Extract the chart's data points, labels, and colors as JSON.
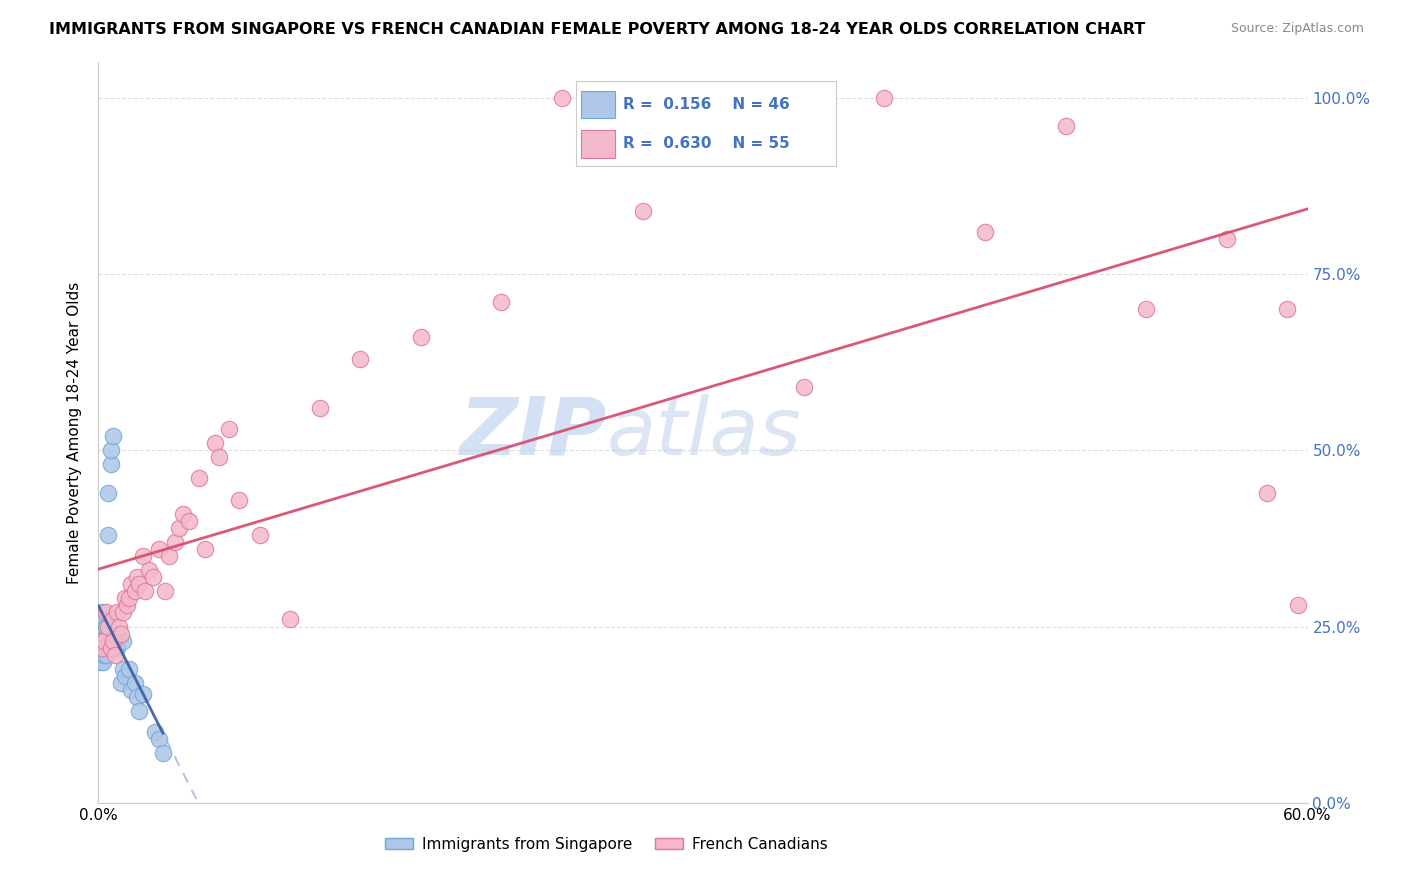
{
  "title": "IMMIGRANTS FROM SINGAPORE VS FRENCH CANADIAN FEMALE POVERTY AMONG 18-24 YEAR OLDS CORRELATION CHART",
  "source": "Source: ZipAtlas.com",
  "ylabel": "Female Poverty Among 18-24 Year Olds",
  "y_ticks": [
    0.0,
    0.25,
    0.5,
    0.75,
    1.0
  ],
  "y_tick_labels_right": [
    "0.0%",
    "25.0%",
    "50.0%",
    "75.0%",
    "100.0%"
  ],
  "xlim": [
    0.0,
    0.6
  ],
  "ylim": [
    0.0,
    1.05
  ],
  "R_singapore": 0.156,
  "N_singapore": 46,
  "R_french": 0.63,
  "N_french": 55,
  "singapore_color": "#aec6e8",
  "singapore_edge": "#6fa8d4",
  "french_color": "#f4b8cb",
  "french_edge": "#e07898",
  "trend_singapore_dashed_color": "#a0b8d8",
  "trend_singapore_solid_color": "#3a5fa0",
  "trend_french_color": "#d85070",
  "watermark_zip": "ZIP",
  "watermark_atlas": "atlas",
  "watermark_color": "#c0d4f0",
  "singapore_points_x": [
    0.0005,
    0.0008,
    0.001,
    0.001,
    0.001,
    0.001,
    0.0012,
    0.0014,
    0.0015,
    0.0016,
    0.002,
    0.002,
    0.002,
    0.002,
    0.0022,
    0.0025,
    0.0028,
    0.003,
    0.003,
    0.003,
    0.0032,
    0.004,
    0.004,
    0.004,
    0.005,
    0.005,
    0.006,
    0.006,
    0.007,
    0.008,
    0.008,
    0.009,
    0.01,
    0.011,
    0.012,
    0.012,
    0.013,
    0.015,
    0.016,
    0.018,
    0.019,
    0.02,
    0.022,
    0.028,
    0.03,
    0.032
  ],
  "singapore_points_y": [
    0.22,
    0.25,
    0.21,
    0.23,
    0.245,
    0.26,
    0.2,
    0.22,
    0.235,
    0.27,
    0.21,
    0.23,
    0.245,
    0.26,
    0.2,
    0.225,
    0.24,
    0.21,
    0.23,
    0.24,
    0.26,
    0.21,
    0.235,
    0.25,
    0.38,
    0.44,
    0.48,
    0.5,
    0.52,
    0.22,
    0.24,
    0.22,
    0.235,
    0.17,
    0.19,
    0.23,
    0.18,
    0.19,
    0.16,
    0.17,
    0.15,
    0.13,
    0.155,
    0.1,
    0.09,
    0.07
  ],
  "french_points_x": [
    0.001,
    0.002,
    0.003,
    0.004,
    0.005,
    0.006,
    0.007,
    0.007,
    0.008,
    0.009,
    0.01,
    0.011,
    0.012,
    0.013,
    0.014,
    0.015,
    0.016,
    0.018,
    0.019,
    0.02,
    0.022,
    0.023,
    0.025,
    0.027,
    0.03,
    0.033,
    0.035,
    0.038,
    0.04,
    0.042,
    0.045,
    0.05,
    0.053,
    0.058,
    0.06,
    0.065,
    0.07,
    0.08,
    0.095,
    0.11,
    0.13,
    0.16,
    0.2,
    0.23,
    0.27,
    0.31,
    0.35,
    0.39,
    0.44,
    0.48,
    0.52,
    0.56,
    0.58,
    0.59,
    0.595
  ],
  "french_points_y": [
    0.23,
    0.22,
    0.23,
    0.27,
    0.25,
    0.22,
    0.23,
    0.26,
    0.21,
    0.27,
    0.25,
    0.24,
    0.27,
    0.29,
    0.28,
    0.29,
    0.31,
    0.3,
    0.32,
    0.31,
    0.35,
    0.3,
    0.33,
    0.32,
    0.36,
    0.3,
    0.35,
    0.37,
    0.39,
    0.41,
    0.4,
    0.46,
    0.36,
    0.51,
    0.49,
    0.53,
    0.43,
    0.38,
    0.26,
    0.56,
    0.63,
    0.66,
    0.71,
    1.0,
    0.84,
    0.96,
    0.59,
    1.0,
    0.81,
    0.96,
    0.7,
    0.8,
    0.44,
    0.7,
    0.28
  ],
  "background_color": "#ffffff",
  "grid_color": "#dddddd"
}
